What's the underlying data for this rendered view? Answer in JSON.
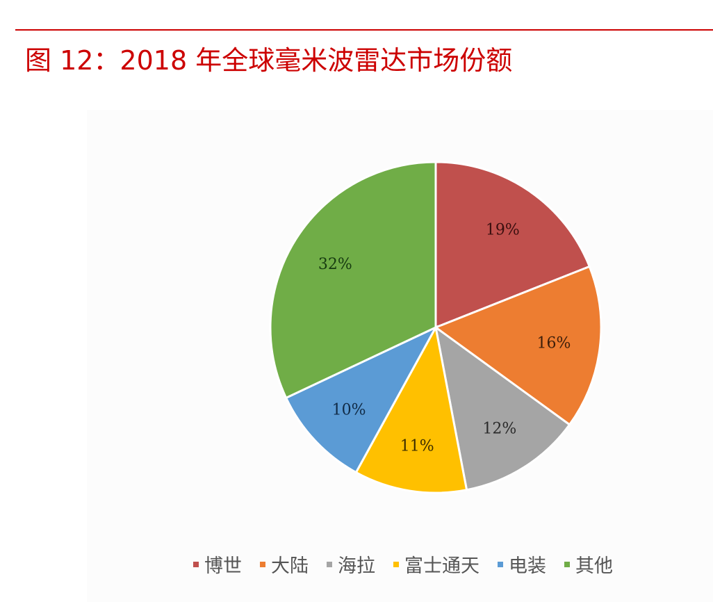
{
  "header": {
    "title": "图 12：2018 年全球毫米波雷达市场份额",
    "rule_color": "#cc0000"
  },
  "chart_data": {
    "type": "pie",
    "title": "图 12：2018 年全球毫米波雷达市场份额",
    "categories": [
      "博世",
      "大陆",
      "海拉",
      "富士通天",
      "电装",
      "其他"
    ],
    "values": [
      19,
      16,
      12,
      11,
      10,
      32
    ],
    "labels": [
      "19%",
      "16%",
      "12%",
      "11%",
      "10%",
      "32%"
    ],
    "colors": [
      "#c0504d",
      "#ed7d31",
      "#a5a5a5",
      "#ffc000",
      "#5b9bd5",
      "#70ad47"
    ],
    "label_colors": [
      "#3a0f0f",
      "#3d1e0a",
      "#2a2a2a",
      "#3a2c00",
      "#102a45",
      "#163a10"
    ],
    "start_angle": 0,
    "direction": "clockwise",
    "legend_position": "bottom",
    "unit": "%"
  },
  "legend": {
    "items": [
      {
        "label": "博世",
        "color": "#c0504d"
      },
      {
        "label": "大陆",
        "color": "#ed7d31"
      },
      {
        "label": "海拉",
        "color": "#a5a5a5"
      },
      {
        "label": "富士通天",
        "color": "#ffc000"
      },
      {
        "label": "电装",
        "color": "#5b9bd5"
      },
      {
        "label": "其他",
        "color": "#70ad47"
      }
    ]
  }
}
